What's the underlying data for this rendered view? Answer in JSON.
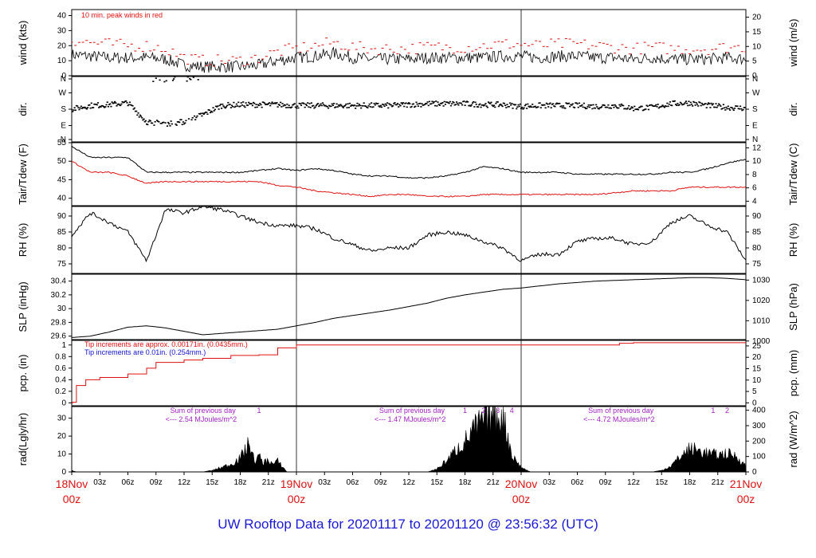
{
  "title": "UW Rooftop Data for 20201117  to  20201120 @ 23:56:32  (UTC)",
  "colors": {
    "primary": "#000000",
    "secondary": "#e01010",
    "tip_blue": "#1111cc",
    "annotation": "#a020c0",
    "date_label": "#dd1111",
    "title": "#1a1ad6"
  },
  "x_axis": {
    "date_labels": [
      {
        "day": "18Nov",
        "hour": "00z"
      },
      {
        "day": "19Nov",
        "hour": "00z"
      },
      {
        "day": "20Nov",
        "hour": "00z"
      },
      {
        "day": "21Nov",
        "hour": "00z"
      }
    ],
    "hour_ticks": [
      "03z",
      "06z",
      "09z",
      "12z",
      "15z",
      "18z",
      "21z"
    ]
  },
  "chart_data": [
    {
      "type": "line",
      "id": "wind",
      "ylabel": "wind (kts)",
      "ylabel_right": "wind (m/s)",
      "ylim": [
        0,
        44
      ],
      "yticks": [
        0,
        10,
        20,
        30,
        40
      ],
      "right_ylim": [
        0,
        22.6
      ],
      "right_yticks": [
        0,
        5,
        10,
        15,
        20
      ],
      "annotation": "10 min. peak winds in red",
      "x_hours": [
        0,
        2,
        4,
        6,
        8,
        10,
        12,
        14,
        16,
        18,
        20,
        22,
        24,
        26,
        28,
        30,
        32,
        34,
        36,
        38,
        40,
        42,
        44,
        46,
        48,
        50,
        52,
        54,
        56,
        58,
        60,
        62,
        64,
        66,
        68,
        70,
        72
      ],
      "series": [
        {
          "values": [
            14,
            13,
            12,
            12,
            12,
            11,
            7,
            6,
            6,
            6,
            7,
            10,
            12,
            13,
            15,
            12,
            11,
            11,
            11,
            12,
            12,
            12,
            12,
            13,
            13,
            12,
            13,
            13,
            12,
            12,
            11,
            12,
            11,
            11,
            11,
            12,
            11
          ]
        },
        {
          "values": [
            24,
            22,
            21,
            20,
            20,
            18,
            12,
            10,
            10,
            10,
            12,
            16,
            18,
            20,
            22,
            19,
            18,
            18,
            18,
            19,
            19,
            19,
            20,
            21,
            21,
            20,
            21,
            21,
            20,
            19,
            18,
            19,
            18,
            18,
            18,
            19,
            19
          ]
        }
      ]
    },
    {
      "type": "scatter",
      "id": "dir",
      "ylabel": "dir.",
      "ylabel_right": "dir.",
      "yticks": [
        "N",
        "E",
        "S",
        "W",
        "N"
      ],
      "x_hours": [
        0,
        2,
        4,
        6,
        8,
        10,
        12,
        14,
        16,
        18,
        20,
        22,
        24,
        26,
        28,
        30,
        32,
        34,
        36,
        38,
        40,
        42,
        44,
        46,
        48,
        50,
        52,
        54,
        56,
        58,
        60,
        62,
        64,
        66,
        68,
        70,
        72
      ],
      "values_deg": [
        180,
        200,
        205,
        215,
        110,
        100,
        110,
        150,
        200,
        205,
        205,
        205,
        200,
        200,
        200,
        200,
        200,
        200,
        205,
        210,
        210,
        210,
        205,
        205,
        195,
        200,
        200,
        200,
        195,
        200,
        185,
        190,
        210,
        215,
        200,
        190,
        185
      ]
    },
    {
      "type": "line",
      "id": "temp",
      "ylabel": "Tair/Tdew (F)",
      "ylabel_right": "Tair/Tdew (C)",
      "ylim": [
        38,
        55
      ],
      "yticks": [
        40,
        45,
        50,
        55
      ],
      "right_ylim": [
        3.33,
        12.78
      ],
      "right_yticks": [
        4,
        6,
        8,
        10,
        12
      ],
      "x_hours": [
        0,
        2,
        4,
        6,
        8,
        10,
        12,
        14,
        16,
        18,
        20,
        22,
        24,
        26,
        28,
        30,
        32,
        34,
        36,
        38,
        40,
        42,
        44,
        46,
        48,
        50,
        52,
        54,
        56,
        58,
        60,
        62,
        64,
        66,
        68,
        70,
        72
      ],
      "series": [
        {
          "name": "Tair",
          "values": [
            54,
            51,
            51,
            51,
            47,
            47,
            47,
            47,
            47,
            47,
            47.5,
            48,
            47.5,
            48,
            47.5,
            46.5,
            46,
            46,
            45.5,
            45.5,
            46,
            47,
            48.5,
            48,
            47,
            47,
            47,
            46.5,
            46.5,
            46.5,
            46.5,
            46.5,
            47,
            47,
            48,
            49.5,
            50.5
          ]
        },
        {
          "name": "Tdew",
          "values": [
            50,
            47,
            47,
            46,
            44,
            44.5,
            44.5,
            44.5,
            44.5,
            44.5,
            44.5,
            43.5,
            43,
            42,
            41.5,
            41,
            40.5,
            41,
            41,
            40.5,
            40.5,
            40.5,
            41,
            41,
            41,
            41,
            41,
            41,
            41,
            41.5,
            42,
            42,
            42,
            43,
            43,
            43,
            43
          ]
        }
      ]
    },
    {
      "type": "line",
      "id": "rh",
      "ylabel": "RH (%)",
      "ylabel_right": "RH (%)",
      "ylim": [
        72,
        93
      ],
      "yticks": [
        75,
        80,
        85,
        90
      ],
      "x_hours": [
        0,
        2,
        4,
        6,
        8,
        10,
        12,
        14,
        16,
        18,
        20,
        22,
        24,
        26,
        28,
        30,
        32,
        34,
        36,
        38,
        40,
        42,
        44,
        46,
        48,
        50,
        52,
        54,
        56,
        58,
        60,
        62,
        64,
        66,
        68,
        70,
        72
      ],
      "series": [
        {
          "values": [
            84,
            91,
            88,
            85,
            76,
            92,
            91,
            93,
            92,
            90,
            88,
            87,
            87,
            86,
            83,
            81,
            79,
            80,
            80,
            84,
            85,
            84,
            82,
            80,
            76,
            78,
            78,
            82,
            83,
            83,
            81,
            82,
            88,
            90,
            87,
            85,
            76
          ]
        }
      ]
    },
    {
      "type": "line",
      "id": "slp",
      "ylabel": "SLP (inHg)",
      "ylabel_right": "SLP (hPa)",
      "ylim": [
        29.55,
        30.5
      ],
      "yticks": [
        29.6,
        29.8,
        30,
        30.2,
        30.4
      ],
      "right_ylim": [
        1000.7,
        1032.9
      ],
      "right_yticks": [
        1000,
        1010,
        1020,
        1030
      ],
      "x_hours": [
        0,
        2,
        4,
        6,
        8,
        10,
        12,
        14,
        16,
        18,
        20,
        22,
        24,
        26,
        28,
        30,
        32,
        34,
        36,
        38,
        40,
        42,
        44,
        46,
        48,
        50,
        52,
        54,
        56,
        58,
        60,
        62,
        64,
        66,
        68,
        70,
        72
      ],
      "series": [
        {
          "values": [
            29.58,
            29.6,
            29.66,
            29.73,
            29.75,
            29.72,
            29.67,
            29.62,
            29.64,
            29.66,
            29.68,
            29.7,
            29.75,
            29.8,
            29.86,
            29.9,
            29.94,
            29.98,
            30.03,
            30.08,
            30.15,
            30.2,
            30.24,
            30.28,
            30.3,
            30.33,
            30.36,
            30.38,
            30.4,
            30.41,
            30.42,
            30.43,
            30.44,
            30.45,
            30.45,
            30.44,
            30.42
          ]
        }
      ]
    },
    {
      "type": "area",
      "id": "pcp",
      "ylabel": "pcp. (in)",
      "ylabel_right": "pcp. (mm)",
      "ylim": [
        -0.05,
        1.08
      ],
      "yticks": [
        0,
        0.2,
        0.4,
        0.6,
        0.8,
        1
      ],
      "right_yticks": [
        0,
        5,
        10,
        15,
        20,
        25
      ],
      "tip_note_red": "Tip increments are approx. 0.00171in. (0.0435mm.)",
      "tip_note_blue": "Tip increments are 0.01in. (0.254mm.)",
      "x_hours": [
        0,
        0.1,
        0.5,
        1.5,
        3,
        6,
        8,
        9,
        12,
        14,
        17,
        20,
        22,
        24,
        26,
        28,
        30,
        36,
        40,
        44,
        48,
        52,
        56,
        58,
        58.5,
        60,
        62,
        64,
        66,
        68,
        72
      ],
      "series": [
        {
          "values": [
            0,
            0.01,
            0.3,
            0.4,
            0.44,
            0.5,
            0.6,
            0.7,
            0.74,
            0.77,
            0.82,
            0.83,
            0.95,
            1.0,
            1.0,
            1.0,
            1.0,
            1.0,
            1.0,
            1.0,
            1.0,
            1.0,
            1.0,
            1.0,
            1.03,
            1.04,
            1.04,
            1.04,
            1.04,
            1.04,
            1.04
          ]
        }
      ]
    },
    {
      "type": "area",
      "id": "rad",
      "ylabel": "rad(Lgly/hr)",
      "ylabel_right": "rad (W/m^2)",
      "ylim": [
        0,
        36.5
      ],
      "yticks": [
        0,
        10,
        20,
        30
      ],
      "right_ylim": [
        0,
        424
      ],
      "right_yticks": [
        0,
        100,
        200,
        300,
        400
      ],
      "annotations": [
        {
          "text": "Sum of previous day",
          "sub": "<--- 2.54 MJoules/m^2"
        },
        {
          "text": "Sum of previous day",
          "sub": "<--- 1.47 MJoules/m^2"
        },
        {
          "text": "Sum of previous day",
          "sub": "<--- 4.72 MJoules/m^2"
        }
      ],
      "markers": [
        "1",
        "1",
        "2",
        "3",
        "4",
        "1",
        "2"
      ],
      "x_hours": [
        0,
        0.5,
        14,
        15,
        16,
        17,
        18,
        18.5,
        19,
        19.5,
        20,
        20.5,
        21,
        21.5,
        22,
        23,
        23.5,
        38,
        39,
        40,
        41,
        42,
        43,
        44,
        45,
        46,
        46.5,
        47,
        48,
        49,
        50,
        62,
        63,
        64,
        65,
        66,
        67,
        68,
        69,
        70,
        71,
        72
      ],
      "series": [
        {
          "values": [
            1,
            0,
            0,
            1,
            3,
            5,
            9,
            14,
            19,
            7,
            10,
            6,
            8,
            5,
            7,
            0,
            0,
            0,
            2,
            7,
            14,
            20,
            28,
            34,
            38,
            36,
            26,
            11,
            3,
            0,
            0,
            0,
            1,
            4,
            10,
            15,
            14,
            12,
            11,
            12,
            10,
            4
          ]
        }
      ]
    }
  ]
}
